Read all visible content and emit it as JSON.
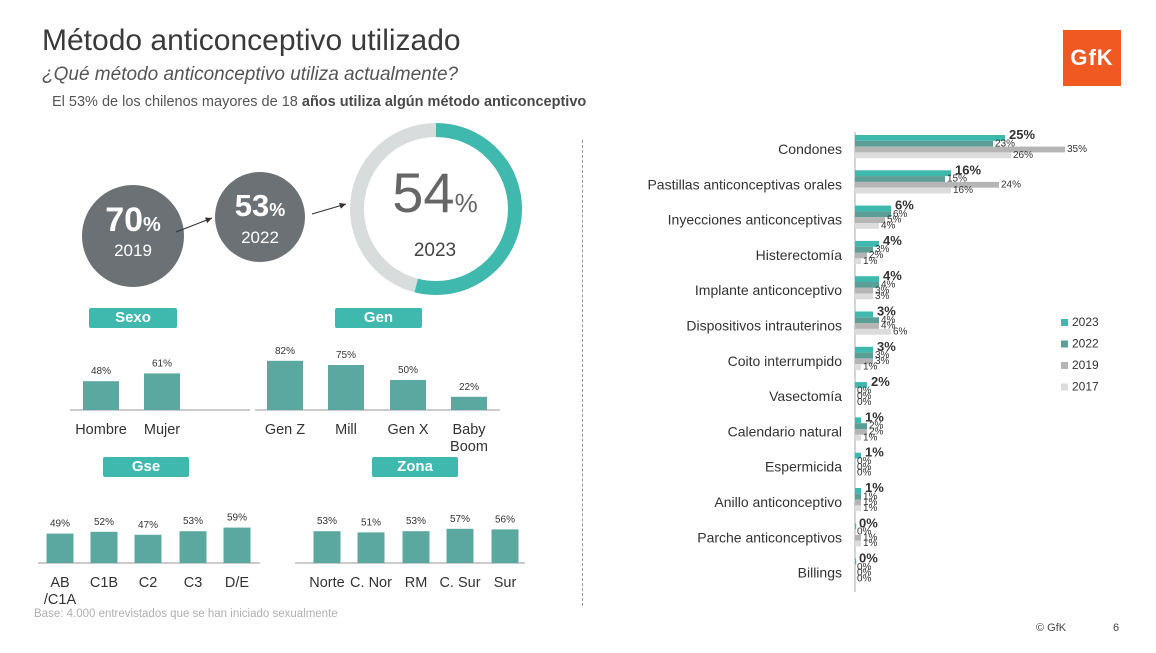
{
  "header": {
    "title": "Método anticonceptivo utilizado",
    "subtitle": "¿Qué método anticonceptivo utiliza actualmente?",
    "headline_normal": "El 53% de los chilenos mayores de 18 ",
    "headline_bold": "años utiliza algún método anticonceptivo",
    "logo": "GfK"
  },
  "trend": {
    "b2019": {
      "value": "70",
      "unit": "%",
      "year": "2019"
    },
    "b2022": {
      "value": "53",
      "unit": "%",
      "year": "2022"
    },
    "b2023": {
      "value": "54",
      "unit": "%",
      "year": "2023",
      "fraction": 0.54
    }
  },
  "colors": {
    "teal": "#3fb9ad",
    "bar": "#5ba8a0",
    "grey": "#6b7175",
    "ring": "#d9dcdd",
    "s2022": "#5a9e96",
    "s2019": "#b5b5b5",
    "s2017": "#dcdcdc"
  },
  "footer": {
    "base": "Base: 4.000 entrevistados que se han iniciado sexualmente",
    "copyright": "© GfK",
    "page": "6"
  },
  "chart_data": [
    {
      "type": "bar",
      "title": "Sexo",
      "categories": [
        "Hombre",
        "Mujer"
      ],
      "values": [
        48,
        61
      ]
    },
    {
      "type": "bar",
      "title": "Gen",
      "categories": [
        "Gen Z",
        "Mill",
        "Gen X",
        "Baby Boom"
      ],
      "values": [
        82,
        75,
        50,
        22
      ]
    },
    {
      "type": "bar",
      "title": "Gse",
      "categories": [
        "AB /C1A",
        "C1B",
        "C2",
        "C3",
        "D/E"
      ],
      "values": [
        49,
        52,
        47,
        53,
        59
      ]
    },
    {
      "type": "bar",
      "title": "Zona",
      "categories": [
        "Norte",
        "C. Nor",
        "RM",
        "C. Sur",
        "Sur"
      ],
      "values": [
        53,
        51,
        53,
        57,
        56
      ]
    },
    {
      "type": "bar",
      "orientation": "horizontal",
      "categories": [
        "Condones",
        "Pastillas anticonceptivas orales",
        "Inyecciones anticonceptivas",
        "Histerectomía",
        "Implante anticonceptivo",
        "Dispositivos intrauterinos",
        "Coito interrumpido",
        "Vasectomía",
        "Calendario natural",
        "Espermicida",
        "Anillo anticonceptivo",
        "Parche anticonceptivos",
        "Billings"
      ],
      "series": [
        {
          "name": "2023",
          "values": [
            25,
            16,
            6,
            4,
            4,
            3,
            3,
            2,
            1,
            1,
            1,
            0,
            0
          ]
        },
        {
          "name": "2022",
          "values": [
            23,
            15,
            6,
            3,
            4,
            4,
            3,
            0,
            2,
            0,
            1,
            0,
            0
          ]
        },
        {
          "name": "2019",
          "values": [
            35,
            24,
            5,
            2,
            3,
            4,
            3,
            0,
            2,
            0,
            1,
            1,
            0
          ]
        },
        {
          "name": "2017",
          "values": [
            26,
            16,
            4,
            1,
            3,
            6,
            1,
            0,
            1,
            0,
            1,
            1,
            0
          ]
        }
      ],
      "legend": "right"
    }
  ]
}
